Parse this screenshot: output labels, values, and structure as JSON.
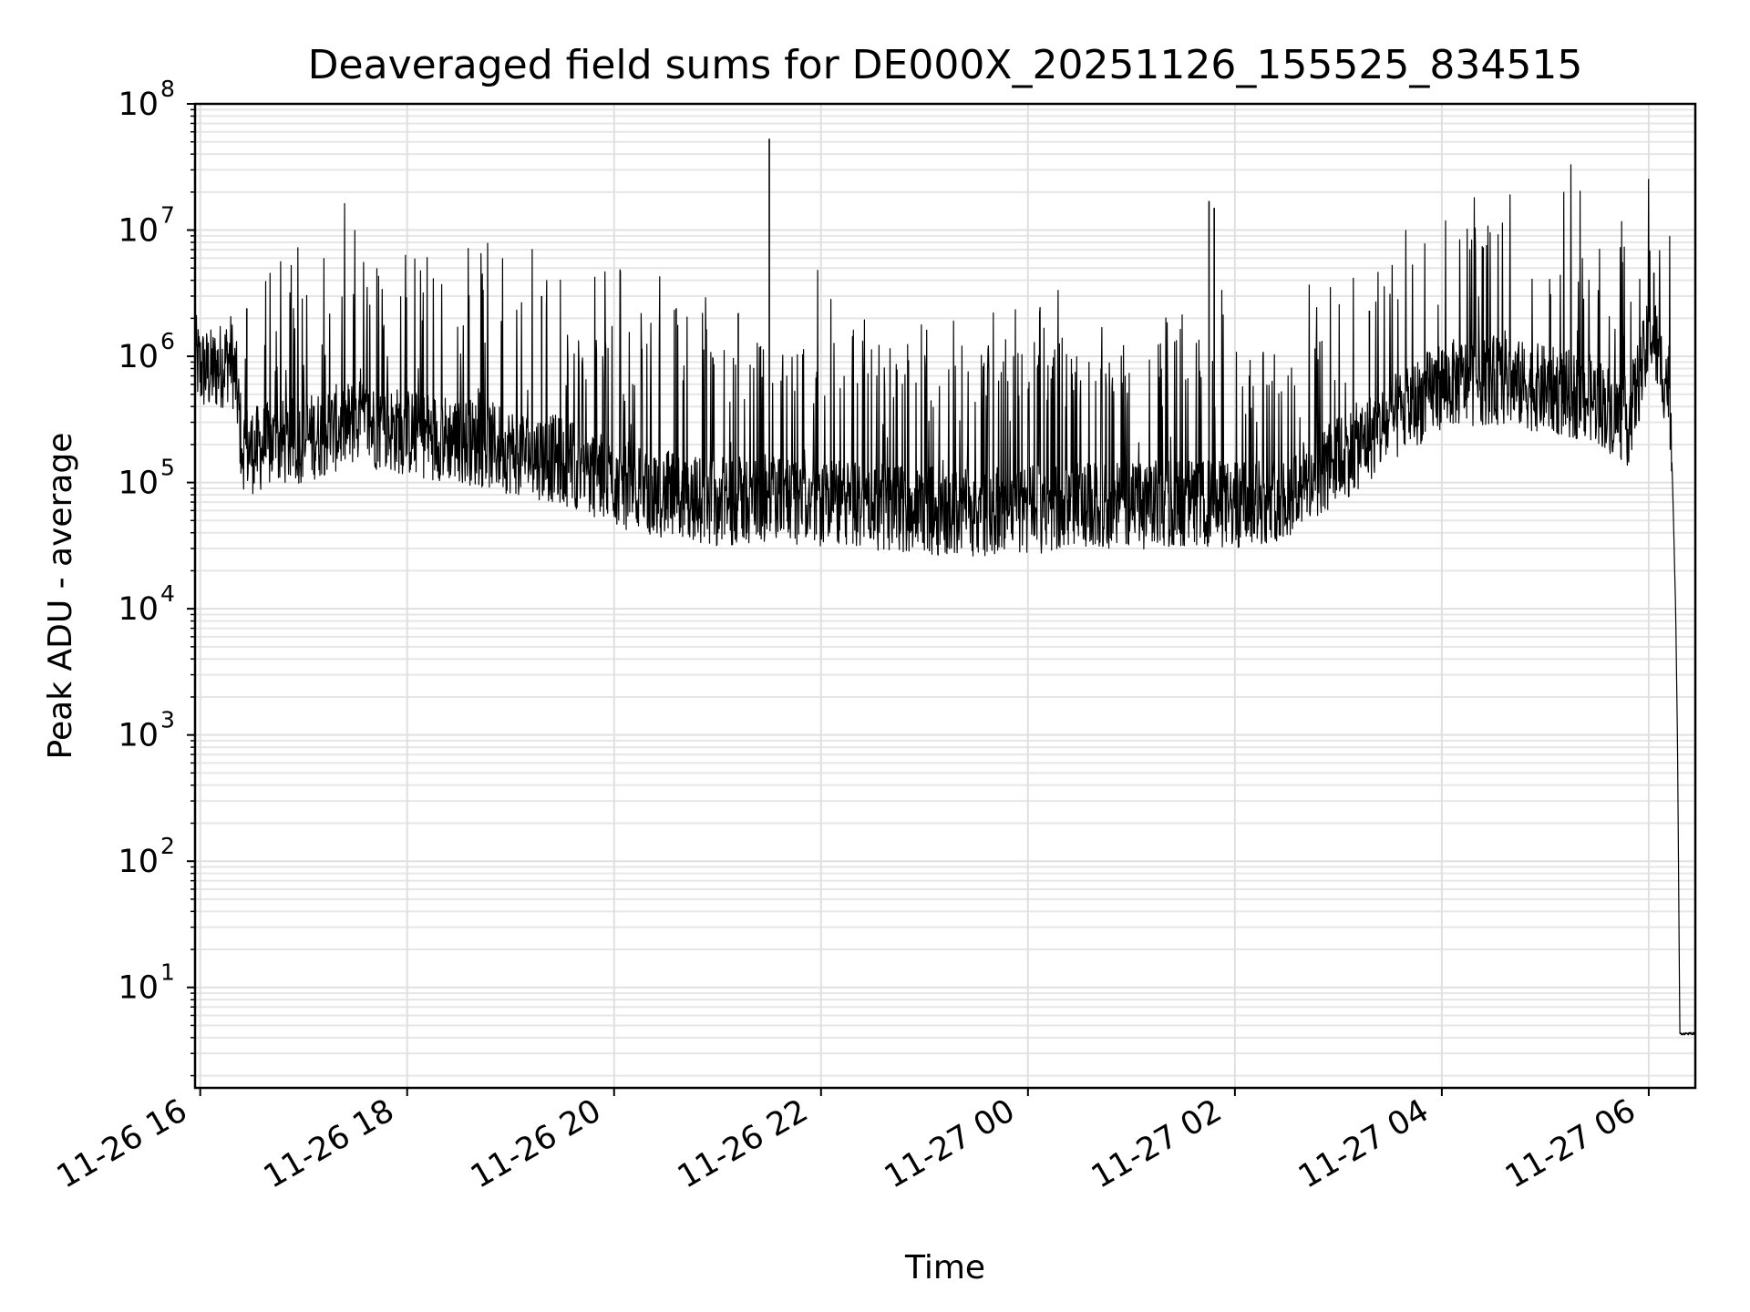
{
  "chart_data": {
    "type": "line",
    "title": "Deaveraged field sums for DE000X_20251126_155525_834515",
    "xlabel": "Time",
    "ylabel": "Peak ADU - average",
    "yscale": "log",
    "ylim": [
      1.6,
      100000000
    ],
    "xlim": [
      15.95,
      30.45
    ],
    "grid": true,
    "legend": "none",
    "line_color": "#000000",
    "x_ticks": [
      {
        "value": 16,
        "label": "11-26 16"
      },
      {
        "value": 18,
        "label": "11-26 18"
      },
      {
        "value": 20,
        "label": "11-26 20"
      },
      {
        "value": 22,
        "label": "11-26 22"
      },
      {
        "value": 24,
        "label": "11-27 00"
      },
      {
        "value": 26,
        "label": "11-27 02"
      },
      {
        "value": 28,
        "label": "11-27 04"
      },
      {
        "value": 30,
        "label": "11-27 06"
      }
    ],
    "y_ticks": [
      {
        "value": 10,
        "base": "10",
        "exp": "1"
      },
      {
        "value": 100,
        "base": "10",
        "exp": "2"
      },
      {
        "value": 1000,
        "base": "10",
        "exp": "3"
      },
      {
        "value": 10000,
        "base": "10",
        "exp": "4"
      },
      {
        "value": 100000,
        "base": "10",
        "exp": "5"
      },
      {
        "value": 1000000,
        "base": "10",
        "exp": "6"
      },
      {
        "value": 10000000,
        "base": "10",
        "exp": "7"
      },
      {
        "value": 100000000,
        "base": "10",
        "exp": "8"
      }
    ],
    "x_unit": "hours since 2025-11-26 00:00",
    "series": [
      {
        "name": "deaveraged field sum",
        "x": [
          15.95,
          16.0,
          16.1,
          16.2,
          16.3,
          16.35,
          16.4,
          16.5,
          16.7,
          17.0,
          17.5,
          18.0,
          18.5,
          19.0,
          19.5,
          20.0,
          20.5,
          21.0,
          21.5,
          22.0,
          22.5,
          23.0,
          23.5,
          24.0,
          24.5,
          25.0,
          25.5,
          26.0,
          26.5,
          27.0,
          27.5,
          28.0,
          28.5,
          29.0,
          29.5,
          29.8,
          29.95,
          30.0,
          30.05,
          30.1,
          30.15,
          30.2,
          30.23,
          30.26,
          30.28,
          30.3,
          30.45
        ],
        "y": [
          1000000,
          800000,
          750000,
          850000,
          1000000,
          600000,
          200000,
          180000,
          200000,
          220000,
          300000,
          250000,
          220000,
          180000,
          150000,
          100000,
          80000,
          70000,
          75000,
          70000,
          65000,
          60000,
          58000,
          60000,
          65000,
          65000,
          70000,
          65000,
          80000,
          150000,
          300000,
          600000,
          650000,
          550000,
          450000,
          300000,
          900000,
          1300000,
          1500000,
          900000,
          700000,
          600000,
          100000,
          10000,
          600,
          4.3,
          4.3
        ]
      }
    ],
    "spikes": [
      {
        "x": 16.45,
        "y": 2400000
      },
      {
        "x": 19.3,
        "y": 3000000
      },
      {
        "x": 20.6,
        "y": 2400000
      },
      {
        "x": 21.5,
        "y": 53000000
      },
      {
        "x": 21.2,
        "y": 2200000
      },
      {
        "x": 25.75,
        "y": 17000000
      },
      {
        "x": 25.8,
        "y": 15000000
      },
      {
        "x": 27.3,
        "y": 2300000
      },
      {
        "x": 28.4,
        "y": 7300000
      },
      {
        "x": 29.05,
        "y": 3100000
      },
      {
        "x": 30.05,
        "y": 4600000
      }
    ]
  }
}
